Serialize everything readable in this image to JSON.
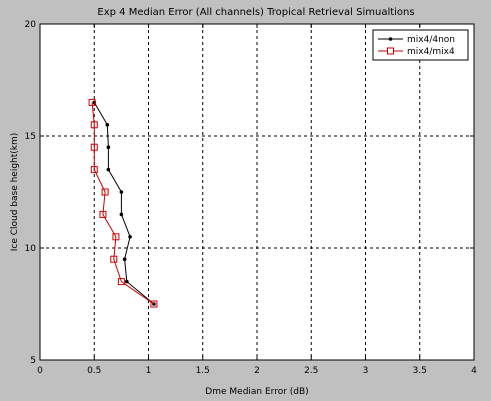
{
  "chart_data": {
    "type": "line",
    "title": "Exp 4 Median Error (All channels) Tropical Retrieval Simualtions",
    "xlabel": "Dme Median Error (dB)",
    "ylabel": "Ice Cloud base height(km)",
    "xlim": [
      0,
      4
    ],
    "ylim": [
      5,
      20
    ],
    "xticks": [
      "0",
      "0.5",
      "1",
      "1.5",
      "2",
      "2.5",
      "3",
      "3.5",
      "4"
    ],
    "yticks": [
      "5",
      "10",
      "15",
      "20"
    ],
    "grid": true,
    "legend_position": "top-right",
    "series": [
      {
        "name": "mix4/4non",
        "color": "#000000",
        "marker": "dot",
        "points": [
          {
            "x": 1.05,
            "y": 7.5
          },
          {
            "x": 0.8,
            "y": 8.5
          },
          {
            "x": 0.78,
            "y": 9.5
          },
          {
            "x": 0.83,
            "y": 10.5
          },
          {
            "x": 0.75,
            "y": 11.5
          },
          {
            "x": 0.75,
            "y": 12.5
          },
          {
            "x": 0.63,
            "y": 13.5
          },
          {
            "x": 0.63,
            "y": 14.5
          },
          {
            "x": 0.62,
            "y": 15.5
          },
          {
            "x": 0.5,
            "y": 16.5
          }
        ]
      },
      {
        "name": "mix4/mix4",
        "color": "#cc0000",
        "marker": "square",
        "points": [
          {
            "x": 1.05,
            "y": 7.5
          },
          {
            "x": 0.75,
            "y": 8.5
          },
          {
            "x": 0.68,
            "y": 9.5
          },
          {
            "x": 0.7,
            "y": 10.5
          },
          {
            "x": 0.58,
            "y": 11.5
          },
          {
            "x": 0.6,
            "y": 12.5
          },
          {
            "x": 0.5,
            "y": 13.5
          },
          {
            "x": 0.5,
            "y": 14.5
          },
          {
            "x": 0.5,
            "y": 15.5
          },
          {
            "x": 0.48,
            "y": 16.5
          }
        ]
      }
    ]
  }
}
